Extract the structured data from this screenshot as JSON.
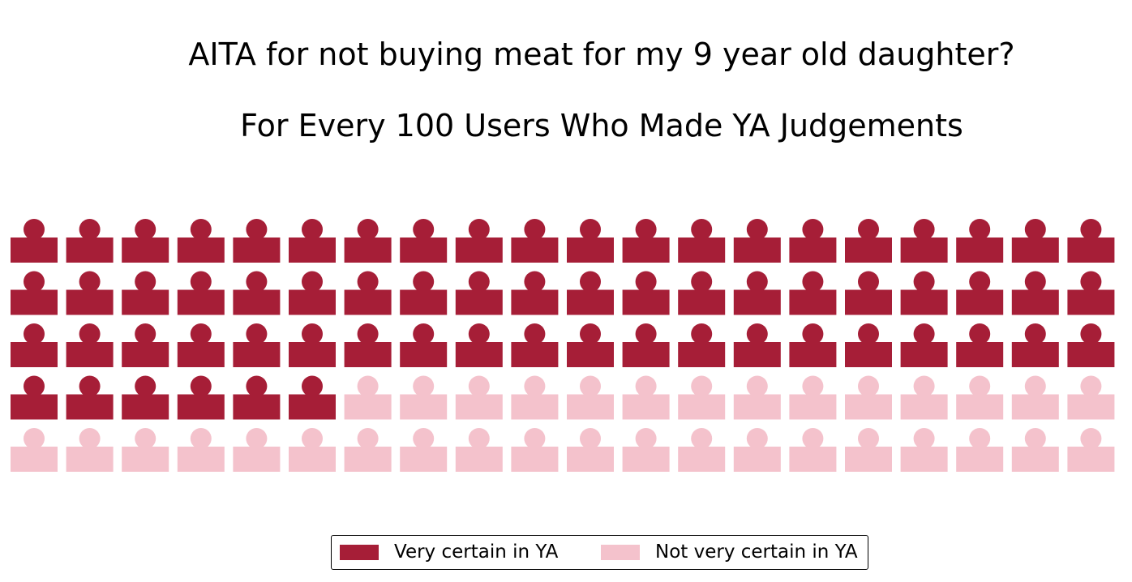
{
  "colors": {
    "very_certain": "#a61e37",
    "not_very_certain": "#f4c2cc"
  },
  "chart_data": {
    "type": "waffle",
    "title": "AITA for not buying meat for my 9 year old daughter?",
    "subtitle": "For Every 100 Users Who Made YA Judgements",
    "total": 100,
    "rows": 5,
    "columns": 20,
    "icon": "person-icon",
    "series": [
      {
        "name": "Very certain in YA",
        "value": 66,
        "color": "#a61e37"
      },
      {
        "name": "Not very certain in YA",
        "value": 34,
        "color": "#f4c2cc"
      }
    ],
    "legend_position": "bottom-center"
  }
}
